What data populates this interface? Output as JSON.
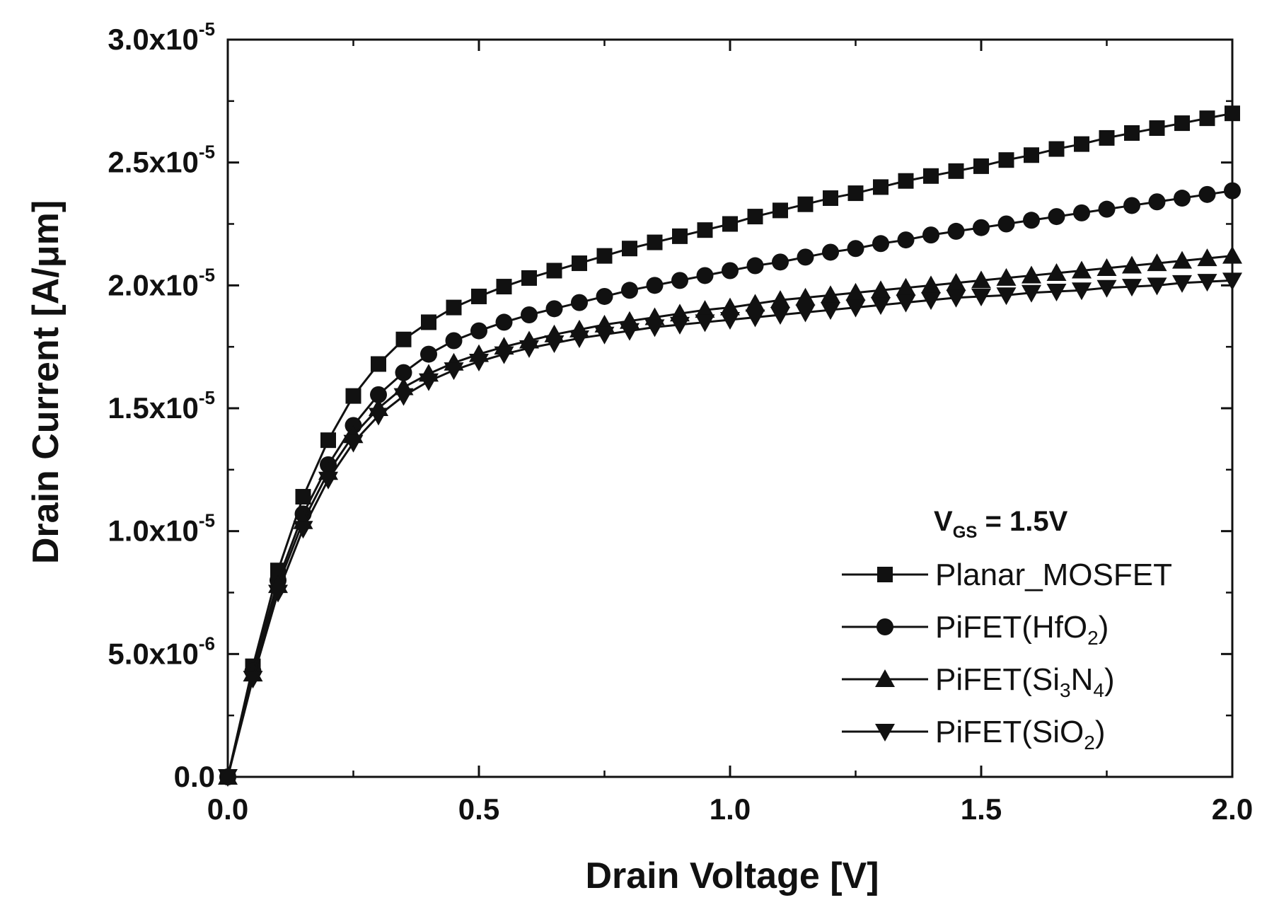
{
  "chart_data": {
    "type": "line",
    "title": "",
    "xlabel": "Drain Voltage [V]",
    "ylabel": "Drain Current [A/μm]",
    "xlim": [
      0,
      2.0
    ],
    "ylim": [
      0,
      3e-05
    ],
    "xticks": [
      0,
      0.5,
      1.0,
      1.5,
      2.0
    ],
    "xtick_labels": [
      "0.0",
      "0.5",
      "1.0",
      "1.5",
      "2.0"
    ],
    "yticks": [
      0,
      5e-06,
      1e-05,
      1.5e-05,
      2e-05,
      2.5e-05,
      3e-05
    ],
    "ytick_labels": [
      {
        "mantissa": "0.0",
        "exponent": ""
      },
      {
        "mantissa": "5.0x10",
        "exponent": "-6"
      },
      {
        "mantissa": "1.0x10",
        "exponent": "-5"
      },
      {
        "mantissa": "1.5x10",
        "exponent": "-5"
      },
      {
        "mantissa": "2.0x10",
        "exponent": "-5"
      },
      {
        "mantissa": "2.5x10",
        "exponent": "-5"
      },
      {
        "mantissa": "3.0x10",
        "exponent": "-5"
      }
    ],
    "legend": {
      "title": "VGS = 1.5V",
      "title_main": "V",
      "title_sub": "GS",
      "title_rest": " = 1.5V",
      "position": "lower-right"
    },
    "x_step": 0.05,
    "series": [
      {
        "name": "Planar_MOSFET",
        "label_parts": [
          {
            "t": "Planar_MOSFET"
          }
        ],
        "marker": "square",
        "values": [
          0,
          4.5e-06,
          8.4e-06,
          1.14e-05,
          1.37e-05,
          1.55e-05,
          1.68e-05,
          1.78e-05,
          1.85e-05,
          1.91e-05,
          1.955e-05,
          1.995e-05,
          2.03e-05,
          2.06e-05,
          2.09e-05,
          2.12e-05,
          2.15e-05,
          2.175e-05,
          2.2e-05,
          2.225e-05,
          2.25e-05,
          2.28e-05,
          2.305e-05,
          2.33e-05,
          2.355e-05,
          2.375e-05,
          2.4e-05,
          2.425e-05,
          2.445e-05,
          2.465e-05,
          2.485e-05,
          2.51e-05,
          2.53e-05,
          2.555e-05,
          2.575e-05,
          2.6e-05,
          2.62e-05,
          2.64e-05,
          2.66e-05,
          2.68e-05,
          2.7e-05
        ]
      },
      {
        "name": "PiFET(HfO2)",
        "label_parts": [
          {
            "t": "PiFET(HfO"
          },
          {
            "t": "2",
            "sub": true
          },
          {
            "t": ")"
          }
        ],
        "marker": "circle",
        "values": [
          0,
          4.3e-06,
          8e-06,
          1.07e-05,
          1.27e-05,
          1.43e-05,
          1.555e-05,
          1.645e-05,
          1.72e-05,
          1.775e-05,
          1.815e-05,
          1.85e-05,
          1.88e-05,
          1.905e-05,
          1.93e-05,
          1.955e-05,
          1.98e-05,
          2e-05,
          2.02e-05,
          2.04e-05,
          2.06e-05,
          2.08e-05,
          2.095e-05,
          2.115e-05,
          2.135e-05,
          2.15e-05,
          2.17e-05,
          2.185e-05,
          2.205e-05,
          2.22e-05,
          2.235e-05,
          2.25e-05,
          2.265e-05,
          2.28e-05,
          2.295e-05,
          2.31e-05,
          2.325e-05,
          2.34e-05,
          2.355e-05,
          2.37e-05,
          2.385e-05
        ]
      },
      {
        "name": "PiFET(Si3N4)",
        "label_parts": [
          {
            "t": "PiFET(Si"
          },
          {
            "t": "3",
            "sub": true
          },
          {
            "t": "N"
          },
          {
            "t": "4",
            "sub": true
          },
          {
            "t": ")"
          }
        ],
        "marker": "triangle-up",
        "values": [
          0,
          4.2e-06,
          7.8e-06,
          1.04e-05,
          1.24e-05,
          1.39e-05,
          1.5e-05,
          1.585e-05,
          1.64e-05,
          1.685e-05,
          1.72e-05,
          1.75e-05,
          1.775e-05,
          1.8e-05,
          1.82e-05,
          1.84e-05,
          1.855e-05,
          1.87e-05,
          1.885e-05,
          1.9e-05,
          1.91e-05,
          1.925e-05,
          1.94e-05,
          1.95e-05,
          1.96e-05,
          1.97e-05,
          1.98e-05,
          1.99e-05,
          2e-05,
          2.01e-05,
          2.02e-05,
          2.03e-05,
          2.04e-05,
          2.05e-05,
          2.06e-05,
          2.07e-05,
          2.08e-05,
          2.09e-05,
          2.1e-05,
          2.11e-05,
          2.12e-05
        ]
      },
      {
        "name": "PiFET(SiO2)",
        "label_parts": [
          {
            "t": "PiFET(SiO"
          },
          {
            "t": "2",
            "sub": true
          },
          {
            "t": ")"
          }
        ],
        "marker": "triangle-down",
        "values": [
          0,
          4e-06,
          7.5e-06,
          1.01e-05,
          1.21e-05,
          1.36e-05,
          1.47e-05,
          1.55e-05,
          1.61e-05,
          1.655e-05,
          1.69e-05,
          1.72e-05,
          1.745e-05,
          1.765e-05,
          1.785e-05,
          1.8e-05,
          1.815e-05,
          1.83e-05,
          1.84e-05,
          1.85e-05,
          1.86e-05,
          1.87e-05,
          1.88e-05,
          1.89e-05,
          1.9e-05,
          1.91e-05,
          1.92e-05,
          1.93e-05,
          1.94e-05,
          1.95e-05,
          1.955e-05,
          1.96e-05,
          1.97e-05,
          1.975e-05,
          1.98e-05,
          1.99e-05,
          1.995e-05,
          2e-05,
          2.01e-05,
          2.015e-05,
          2.02e-05
        ]
      }
    ]
  }
}
